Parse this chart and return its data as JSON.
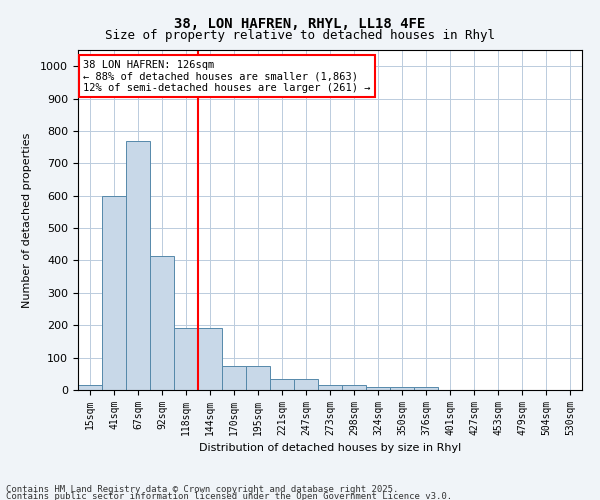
{
  "title1": "38, LON HAFREN, RHYL, LL18 4FE",
  "title2": "Size of property relative to detached houses in Rhyl",
  "xlabel": "Distribution of detached houses by size in Rhyl",
  "ylabel": "Number of detached properties",
  "categories": [
    "15sqm",
    "41sqm",
    "67sqm",
    "92sqm",
    "118sqm",
    "144sqm",
    "170sqm",
    "195sqm",
    "221sqm",
    "247sqm",
    "273sqm",
    "298sqm",
    "324sqm",
    "350sqm",
    "376sqm",
    "401sqm",
    "427sqm",
    "453sqm",
    "479sqm",
    "504sqm",
    "530sqm"
  ],
  "values": [
    15,
    600,
    770,
    415,
    190,
    190,
    75,
    75,
    35,
    35,
    15,
    15,
    10,
    10,
    10,
    0,
    0,
    0,
    0,
    0,
    0
  ],
  "bar_color": "#c8d8e8",
  "bar_edge_color": "#5588aa",
  "vline_x": 4,
  "vline_color": "red",
  "annotation_text": "38 LON HAFREN: 126sqm\n← 88% of detached houses are smaller (1,863)\n12% of semi-detached houses are larger (261) →",
  "annotation_box_color": "white",
  "annotation_box_edge": "red",
  "ylim": [
    0,
    1050
  ],
  "yticks": [
    0,
    100,
    200,
    300,
    400,
    500,
    600,
    700,
    800,
    900,
    1000
  ],
  "bg_color": "#f0f4f8",
  "footer1": "Contains HM Land Registry data © Crown copyright and database right 2025.",
  "footer2": "Contains public sector information licensed under the Open Government Licence v3.0."
}
